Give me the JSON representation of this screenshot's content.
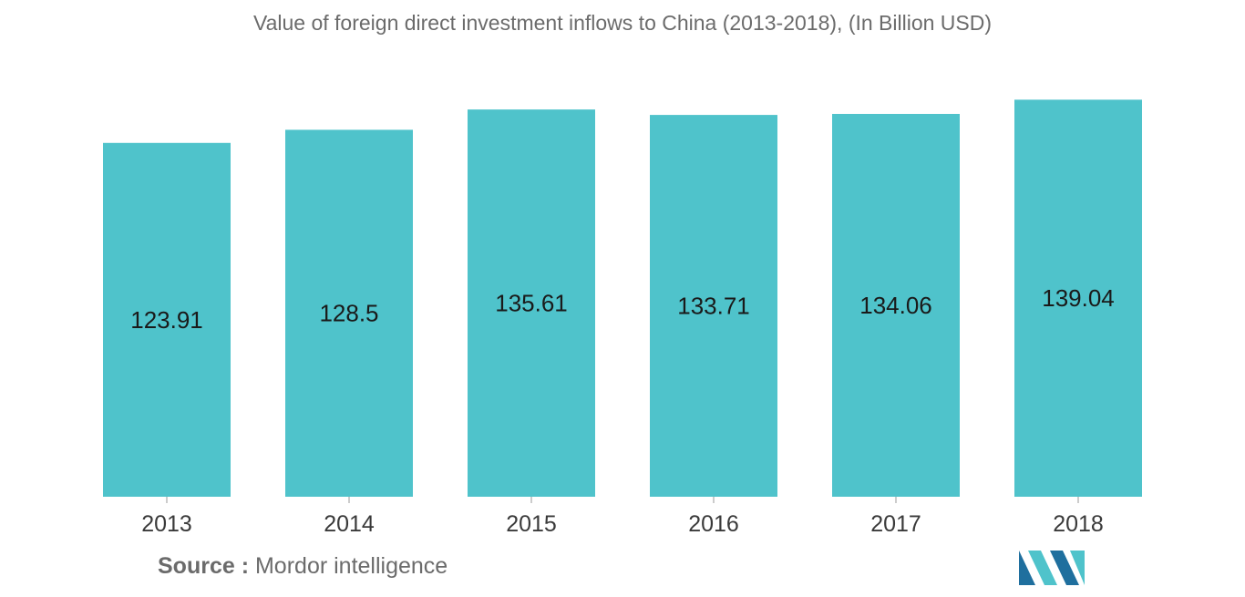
{
  "title": "Value of foreign direct investment inflows to China (2013-2018), (In Billion USD)",
  "source": {
    "label": "Source :",
    "text": "Mordor intelligence"
  },
  "colors": {
    "bar": "#4fc3cb",
    "logo_dark": "#1f6f9e",
    "logo_light": "#4fc3cb"
  },
  "chart_data": {
    "type": "bar",
    "categories": [
      "2013",
      "2014",
      "2015",
      "2016",
      "2017",
      "2018"
    ],
    "values": [
      123.91,
      128.5,
      135.61,
      133.71,
      134.06,
      139.04
    ],
    "data_labels": [
      "123.91",
      "128.5",
      "135.61",
      "133.71",
      "134.06",
      "139.04"
    ],
    "title": "Value of foreign direct investment inflows to China (2013-2018), (In Billion USD)",
    "xlabel": "",
    "ylabel": "",
    "grid": false,
    "legend": "none"
  }
}
